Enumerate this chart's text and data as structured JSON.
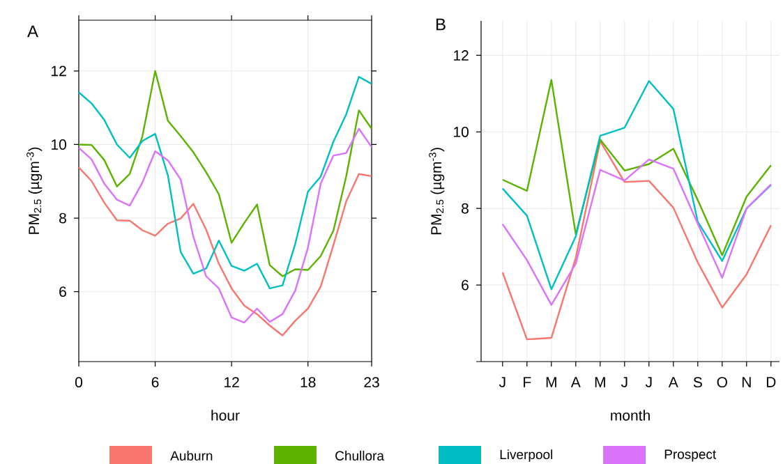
{
  "chart_data": [
    {
      "type": "line",
      "title": "A",
      "xlabel": "hour",
      "ylabel": "PM$_{2.5}$ (µgm$^{-3}$)",
      "x": [
        0,
        1,
        2,
        3,
        4,
        5,
        6,
        7,
        8,
        9,
        10,
        11,
        12,
        13,
        14,
        15,
        16,
        17,
        18,
        19,
        20,
        21,
        22,
        23
      ],
      "xlim": [
        0,
        23
      ],
      "xticks": [
        0,
        6,
        12,
        18,
        23
      ],
      "ylim": [
        4.1,
        13.38
      ],
      "yticks": [
        6,
        8,
        10,
        12
      ],
      "grid": true,
      "series": [
        {
          "color": "#f8766d",
          "values": [
            9.38,
            9.01,
            8.42,
            7.94,
            7.93,
            7.67,
            7.52,
            7.85,
            7.99,
            8.39,
            7.69,
            6.76,
            6.09,
            5.62,
            5.39,
            5.08,
            4.81,
            5.21,
            5.54,
            6.14,
            7.27,
            8.45,
            9.2,
            9.14
          ]
        },
        {
          "color": "#5bb300",
          "values": [
            10.0,
            9.99,
            9.58,
            8.86,
            9.2,
            10.23,
            12.0,
            10.65,
            10.23,
            9.79,
            9.25,
            8.65,
            7.33,
            7.87,
            8.37,
            6.72,
            6.42,
            6.61,
            6.59,
            6.97,
            7.66,
            9.13,
            10.93,
            10.43
          ]
        },
        {
          "color": "#00bfc4",
          "values": [
            11.42,
            11.12,
            10.67,
            10.0,
            9.64,
            10.1,
            10.29,
            9.16,
            7.08,
            6.49,
            6.63,
            7.39,
            6.7,
            6.57,
            6.76,
            6.09,
            6.17,
            7.3,
            8.72,
            9.13,
            10.08,
            10.82,
            11.84,
            11.65
          ]
        },
        {
          "color": "#db72fb",
          "values": [
            9.91,
            9.6,
            8.94,
            8.5,
            8.34,
            8.97,
            9.82,
            9.57,
            9.05,
            7.49,
            6.42,
            6.09,
            5.3,
            5.16,
            5.54,
            5.18,
            5.39,
            6.03,
            7.2,
            8.94,
            9.7,
            9.77,
            10.43,
            9.93
          ]
        }
      ]
    },
    {
      "type": "line",
      "title": "B",
      "xlabel": "month",
      "ylabel": "PM$_{2.5}$ (µgm$^{-3}$)",
      "categories": [
        "J",
        "F",
        "M",
        "A",
        "M",
        "J",
        "J",
        "A",
        "S",
        "O",
        "N",
        "D"
      ],
      "ylim": [
        4,
        12.9
      ],
      "yticks": [
        {
          "value": 4,
          "label": null
        },
        6,
        8,
        10,
        12
      ],
      "grid": true,
      "legend": "bottom",
      "series": [
        {
          "name": "Auburn",
          "color": "#f8766d",
          "values": [
            6.33,
            4.58,
            4.62,
            6.71,
            9.76,
            8.69,
            8.72,
            8.02,
            6.59,
            5.41,
            6.28,
            7.56
          ]
        },
        {
          "name": "Chullora",
          "color": "#5bb300",
          "values": [
            8.75,
            8.46,
            11.36,
            7.32,
            9.8,
            8.99,
            9.16,
            9.56,
            8.22,
            6.78,
            8.31,
            9.13
          ]
        },
        {
          "name": "Liverpool",
          "color": "#00bfc4",
          "values": [
            8.52,
            7.81,
            5.89,
            7.27,
            9.9,
            10.11,
            11.33,
            10.6,
            7.65,
            6.63,
            8.0,
            8.61
          ]
        },
        {
          "name": "Prospect",
          "color": "#db72fb",
          "values": [
            7.59,
            6.65,
            5.48,
            6.56,
            9.01,
            8.73,
            9.28,
            9.04,
            7.6,
            6.19,
            8.0,
            8.63
          ]
        }
      ]
    }
  ]
}
